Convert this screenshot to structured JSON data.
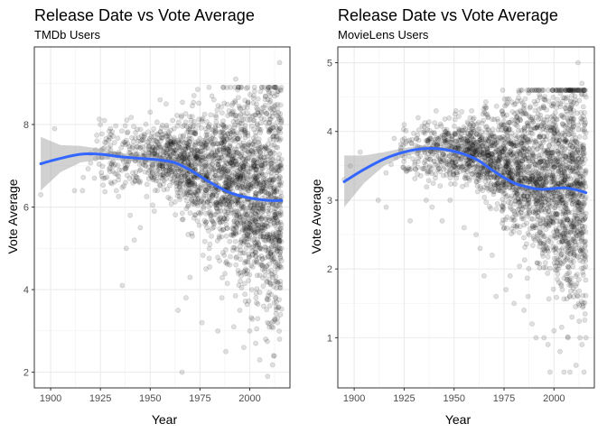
{
  "chart_data": [
    {
      "type": "scatter",
      "title": "Release Date vs Vote Average",
      "subtitle": "TMDb Users",
      "xlabel": "Year",
      "ylabel": "Vote Average",
      "xlim": [
        1891.8,
        2020.2
      ],
      "ylim": [
        1.62,
        9.88
      ],
      "x_ticks": [
        1900,
        1925,
        1950,
        1975,
        2000
      ],
      "y_ticks": [
        2,
        4,
        6,
        8
      ],
      "grid": true,
      "legend": "none",
      "point_color": "#000000",
      "point_alpha": 0.12,
      "smooth_color": "#3366FF",
      "ribbon_color": "#999999",
      "smooth_line": {
        "x": [
          1895,
          1905,
          1915,
          1925,
          1935,
          1945,
          1955,
          1962,
          1970,
          1980,
          1990,
          2000,
          2010,
          2016
        ],
        "y": [
          7.05,
          7.18,
          7.28,
          7.28,
          7.22,
          7.18,
          7.14,
          7.08,
          6.9,
          6.6,
          6.35,
          6.22,
          6.16,
          6.16
        ],
        "lower": [
          6.4,
          6.85,
          7.08,
          7.15,
          7.13,
          7.1,
          7.07,
          7.0,
          6.84,
          6.56,
          6.32,
          6.2,
          6.14,
          6.12
        ],
        "upper": [
          7.7,
          7.5,
          7.48,
          7.41,
          7.31,
          7.26,
          7.21,
          7.16,
          6.96,
          6.64,
          6.38,
          6.24,
          6.18,
          6.2
        ]
      },
      "points": [
        [
          1895,
          6.3
        ],
        [
          1902,
          7.9
        ],
        [
          1912,
          6.4
        ],
        [
          1916,
          6.4
        ],
        [
          1920,
          7.3
        ],
        [
          1922,
          6.7
        ],
        [
          1925,
          8.0
        ],
        [
          1927,
          8.1
        ],
        [
          1930,
          7.9
        ],
        [
          1933,
          6.4
        ],
        [
          1936,
          4.1
        ],
        [
          1938,
          5.0
        ],
        [
          1940,
          5.8
        ],
        [
          1942,
          5.2
        ],
        [
          1945,
          5.5
        ],
        [
          1948,
          7.5
        ],
        [
          1950,
          8.3
        ],
        [
          1952,
          5.9
        ],
        [
          1955,
          8.6
        ],
        [
          1958,
          8.5
        ],
        [
          1960,
          6.2
        ],
        [
          1962,
          7.9
        ],
        [
          1964,
          3.5
        ],
        [
          1966,
          2.0
        ],
        [
          1968,
          3.8
        ],
        [
          1970,
          4.3
        ],
        [
          1972,
          8.7
        ],
        [
          1973,
          6.1
        ],
        [
          1976,
          3.2
        ],
        [
          1978,
          4.5
        ],
        [
          1980,
          5.1
        ],
        [
          1982,
          8.6
        ],
        [
          1984,
          3.0
        ],
        [
          1986,
          3.8
        ],
        [
          1988,
          2.5
        ],
        [
          1990,
          4.6
        ],
        [
          1992,
          3.1
        ],
        [
          1993,
          9.1
        ],
        [
          1995,
          3.5
        ],
        [
          1997,
          2.6
        ],
        [
          1999,
          8.5
        ],
        [
          2000,
          3.0
        ],
        [
          2001,
          4.0
        ],
        [
          2002,
          8.7
        ],
        [
          2003,
          2.7
        ],
        [
          2004,
          3.3
        ],
        [
          2005,
          2.3
        ],
        [
          2006,
          8.9
        ],
        [
          2007,
          3.6
        ],
        [
          2008,
          2.8
        ],
        [
          2009,
          1.9
        ],
        [
          2010,
          8.4
        ],
        [
          2011,
          3.1
        ],
        [
          2012,
          2.4
        ],
        [
          2013,
          4.2
        ],
        [
          2014,
          8.8
        ],
        [
          2015,
          9.5
        ],
        [
          2016,
          5.0
        ],
        [
          2015,
          2.8
        ],
        [
          2014,
          3.2
        ]
      ]
    },
    {
      "type": "scatter",
      "title": "Release Date vs Vote Average",
      "subtitle": "MovieLens Users",
      "xlabel": "Year",
      "ylabel": "Vote Average",
      "xlim": [
        1891.8,
        2020.2
      ],
      "ylim": [
        0.27,
        5.23
      ],
      "x_ticks": [
        1900,
        1925,
        1950,
        1975,
        2000
      ],
      "y_ticks": [
        1,
        2,
        3,
        4,
        5
      ],
      "grid": true,
      "legend": "none",
      "point_color": "#000000",
      "point_alpha": 0.12,
      "smooth_color": "#3366FF",
      "ribbon_color": "#999999",
      "smooth_line": {
        "x": [
          1895,
          1905,
          1915,
          1925,
          1935,
          1945,
          1955,
          1962,
          1970,
          1980,
          1990,
          1995,
          2000,
          2005,
          2010,
          2016
        ],
        "y": [
          3.27,
          3.45,
          3.6,
          3.7,
          3.75,
          3.74,
          3.67,
          3.58,
          3.42,
          3.25,
          3.17,
          3.16,
          3.17,
          3.18,
          3.16,
          3.11
        ],
        "lower": [
          2.9,
          3.25,
          3.5,
          3.64,
          3.71,
          3.71,
          3.64,
          3.55,
          3.39,
          3.22,
          3.15,
          3.14,
          3.15,
          3.16,
          3.14,
          3.07
        ],
        "upper": [
          3.65,
          3.65,
          3.7,
          3.76,
          3.79,
          3.77,
          3.7,
          3.61,
          3.45,
          3.28,
          3.19,
          3.18,
          3.19,
          3.2,
          3.18,
          3.15
        ]
      },
      "points": [
        [
          1895,
          3.3
        ],
        [
          1898,
          3.5
        ],
        [
          1903,
          3.7
        ],
        [
          1912,
          3.0
        ],
        [
          1916,
          2.9
        ],
        [
          1920,
          3.9
        ],
        [
          1925,
          4.1
        ],
        [
          1928,
          2.7
        ],
        [
          1932,
          4.2
        ],
        [
          1936,
          3.0
        ],
        [
          1939,
          2.9
        ],
        [
          1941,
          4.3
        ],
        [
          1944,
          2.7
        ],
        [
          1948,
          3.0
        ],
        [
          1951,
          4.3
        ],
        [
          1955,
          2.6
        ],
        [
          1958,
          4.2
        ],
        [
          1961,
          2.5
        ],
        [
          1963,
          2.3
        ],
        [
          1965,
          1.9
        ],
        [
          1967,
          4.2
        ],
        [
          1969,
          2.2
        ],
        [
          1971,
          1.6
        ],
        [
          1974,
          4.3
        ],
        [
          1976,
          1.7
        ],
        [
          1978,
          1.9
        ],
        [
          1980,
          1.5
        ],
        [
          1983,
          4.3
        ],
        [
          1985,
          1.4
        ],
        [
          1987,
          1.6
        ],
        [
          1989,
          1.2
        ],
        [
          1991,
          1.0
        ],
        [
          1993,
          4.5
        ],
        [
          1995,
          1.0
        ],
        [
          1997,
          0.9
        ],
        [
          1998,
          0.5
        ],
        [
          2000,
          1.1
        ],
        [
          2002,
          4.4
        ],
        [
          2003,
          0.8
        ],
        [
          2005,
          0.5
        ],
        [
          2006,
          4.6
        ],
        [
          2007,
          1.0
        ],
        [
          2008,
          0.5
        ],
        [
          2009,
          1.3
        ],
        [
          2010,
          4.6
        ],
        [
          2011,
          0.6
        ],
        [
          2012,
          5.0
        ],
        [
          2013,
          1.0
        ],
        [
          2014,
          4.7
        ],
        [
          2015,
          0.5
        ],
        [
          2016,
          4.5
        ],
        [
          2014,
          0.9
        ],
        [
          2012,
          1.6
        ],
        [
          2016,
          1.0
        ]
      ]
    }
  ]
}
